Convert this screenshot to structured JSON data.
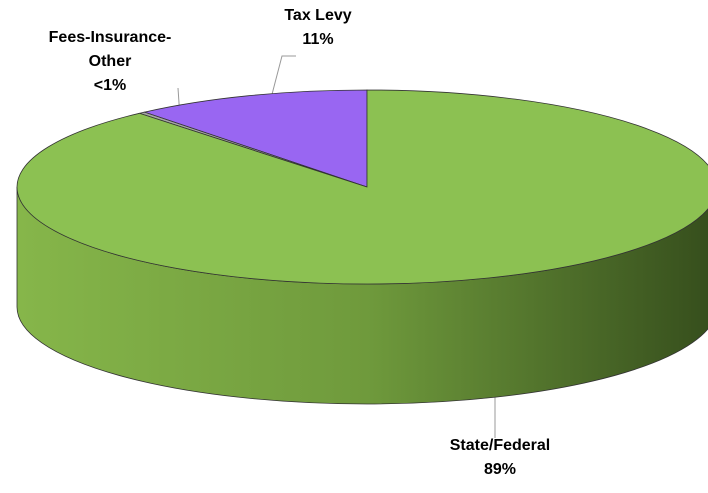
{
  "chart_data": {
    "type": "pie3d",
    "categories": [
      "Tax Levy",
      "Fees-Insurance-Other",
      "State/Federal"
    ],
    "values": [
      11,
      0.3,
      89
    ],
    "value_labels": [
      "11%",
      "<1%",
      "89%"
    ],
    "colors": [
      "#9966f2",
      "#a6a6a6",
      "#8cc152"
    ]
  }
}
